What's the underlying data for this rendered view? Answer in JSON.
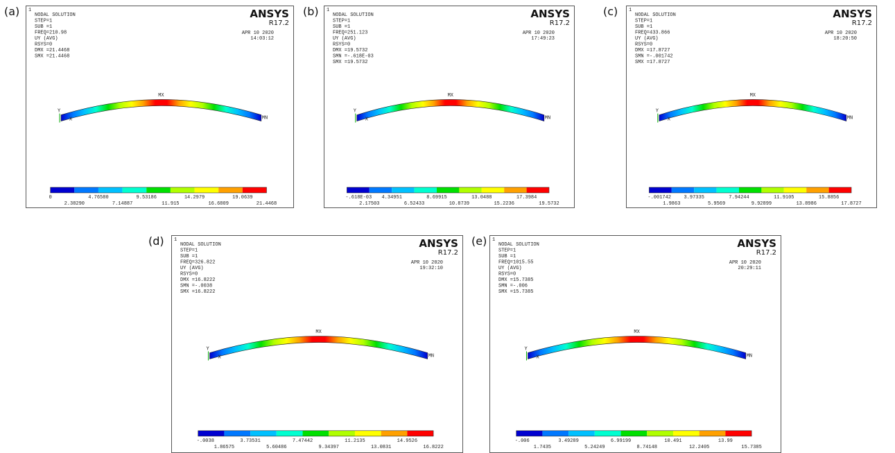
{
  "panels": [
    {
      "label": "(a)",
      "window_number": "1",
      "header": [
        "NODAL SOLUTION",
        "STEP=1",
        "SUB =1",
        "FREQ=210.98",
        "UY (AVG)",
        "RSYS=0",
        "DMX =21.4468",
        "SMX =21.4468"
      ],
      "logo": "ANSYS",
      "version": "R17.2",
      "date": "APR 10 2020",
      "time": "14:03:12",
      "mx": "MX",
      "mn": "MN",
      "axis_y": "Y",
      "axis_x": "X",
      "legend": [
        "0",
        "2.38290",
        "4.76580",
        "7.14887",
        "9.53186",
        "11.915",
        "14.2979",
        "16.6809",
        "19.0639",
        "21.4468"
      ]
    },
    {
      "label": "(b)",
      "window_number": "1",
      "header": [
        "NODAL SOLUTION",
        "STEP=1",
        "SUB =1",
        "FREQ=251.123",
        "UY (AVG)",
        "RSYS=0",
        "DMX =19.5732",
        "SMN =-.618E-03",
        "SMX =19.5732"
      ],
      "logo": "ANSYS",
      "version": "R17.2",
      "date": "APR 10 2020",
      "time": "17:49:23",
      "mx": "MX",
      "mn": "MN",
      "axis_y": "Y",
      "axis_x": "X",
      "legend": [
        "-.618E-03",
        "2.17503",
        "4.34951",
        "6.52433",
        "8.69915",
        "10.8739",
        "13.0488",
        "15.2236",
        "17.3984",
        "19.5732"
      ]
    },
    {
      "label": "(c)",
      "window_number": "1",
      "header": [
        "NODAL SOLUTION",
        "STEP=1",
        "SUB =1",
        "FREQ=433.866",
        "UY (AVG)",
        "RSYS=0",
        "DMX =17.8727",
        "SMN =-.001742",
        "SMX =17.8727"
      ],
      "logo": "ANSYS",
      "version": "R17.2",
      "date": "APR 10 2020",
      "time": "18:20:50",
      "mx": "MX",
      "mn": "MN",
      "axis_y": "Y",
      "axis_x": "X",
      "legend": [
        "-.001742",
        "1.9863",
        "3.97335",
        "5.9569",
        "7.94244",
        "9.92899",
        "11.9105",
        "13.8986",
        "15.8856",
        "17.8727"
      ]
    },
    {
      "label": "(d)",
      "window_number": "1",
      "header": [
        "NODAL SOLUTION",
        "STEP=1",
        "SUB =1",
        "FREQ=326.822",
        "UY (AVG)",
        "RSYS=0",
        "DMX =16.8222",
        "SMN =-.0038",
        "SMX =16.8222"
      ],
      "logo": "ANSYS",
      "version": "R17.2",
      "date": "APR 10 2020",
      "time": "19:32:10",
      "mx": "MX",
      "mn": "MN",
      "axis_y": "Y",
      "axis_x": "X",
      "legend": [
        "-.0038",
        "1.86575",
        "3.73531",
        "5.60486",
        "7.47442",
        "9.34397",
        "11.2135",
        "13.0831",
        "14.9526",
        "16.8222"
      ]
    },
    {
      "label": "(e)",
      "window_number": "1",
      "header": [
        "NODAL SOLUTION",
        "STEP=1",
        "SUB =1",
        "FREQ=1015.55",
        "UY (AVG)",
        "RSYS=0",
        "DMX =15.7385",
        "SMN =-.006",
        "SMX =15.7385"
      ],
      "logo": "ANSYS",
      "version": "R17.2",
      "date": "APR 10 2020",
      "time": "20:29:11",
      "mx": "MX",
      "mn": "MN",
      "axis_y": "Y",
      "axis_x": "X",
      "legend": [
        "-.006",
        "1.7435",
        "3.49289",
        "5.24249",
        "6.99199",
        "8.74148",
        "10.491",
        "12.2405",
        "13.99",
        "15.7385"
      ]
    }
  ]
}
